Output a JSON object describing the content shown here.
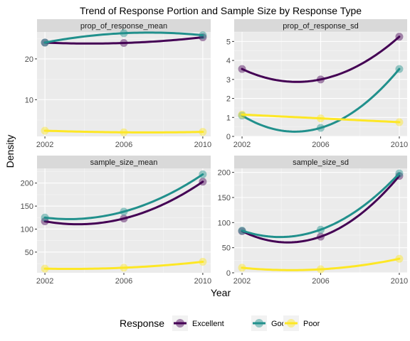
{
  "chart_data": {
    "type": "line",
    "title": "Trend of Response Portion and Sample Size by Response Type",
    "xlabel": "Year",
    "ylabel": "Density",
    "x": [
      2002,
      2006,
      2010
    ],
    "x_ticks": [
      "2002",
      "2006",
      "2010"
    ],
    "grid": true,
    "legend": {
      "position": "bottom",
      "title": "Response",
      "entries": [
        "Excellent",
        "Good",
        "Poor"
      ]
    },
    "colors": {
      "Excellent": "#440154",
      "Good": "#21908C",
      "Poor": "#FDE725"
    },
    "panels": [
      {
        "title": "prop_of_response_mean",
        "ylim": [
          1.0,
          26.6
        ],
        "y_ticks": [
          10,
          20
        ],
        "series": [
          {
            "name": "Excellent",
            "values": [
              24.0,
              23.9,
              25.3
            ]
          },
          {
            "name": "Good",
            "values": [
              24.0,
              26.3,
              25.8
            ]
          },
          {
            "name": "Poor",
            "values": [
              2.4,
              2.0,
              2.1
            ]
          }
        ]
      },
      {
        "title": "prop_of_response_sd",
        "ylim": [
          0,
          5.5
        ],
        "y_ticks": [
          0,
          1,
          2,
          3,
          4,
          5
        ],
        "series": [
          {
            "name": "Excellent",
            "values": [
              3.55,
              3.0,
              5.25
            ]
          },
          {
            "name": "Good",
            "values": [
              1.1,
              0.45,
              3.55
            ]
          },
          {
            "name": "Poor",
            "values": [
              1.15,
              0.95,
              0.75
            ]
          }
        ]
      },
      {
        "title": "sample_size_mean",
        "ylim": [
          5,
          232
        ],
        "y_ticks": [
          50,
          100,
          150,
          200
        ],
        "series": [
          {
            "name": "Excellent",
            "values": [
              117,
              123,
              203
            ]
          },
          {
            "name": "Good",
            "values": [
              125,
              138,
              219
            ]
          },
          {
            "name": "Poor",
            "values": [
              14,
              16,
              29
            ]
          }
        ]
      },
      {
        "title": "sample_size_sd",
        "ylim": [
          0,
          208
        ],
        "y_ticks": [
          0,
          50,
          100,
          150,
          200
        ],
        "series": [
          {
            "name": "Excellent",
            "values": [
              83,
              72,
              193
            ]
          },
          {
            "name": "Good",
            "values": [
              84,
              86,
              198
            ]
          },
          {
            "name": "Poor",
            "values": [
              10,
              7,
              28
            ]
          }
        ]
      }
    ]
  }
}
